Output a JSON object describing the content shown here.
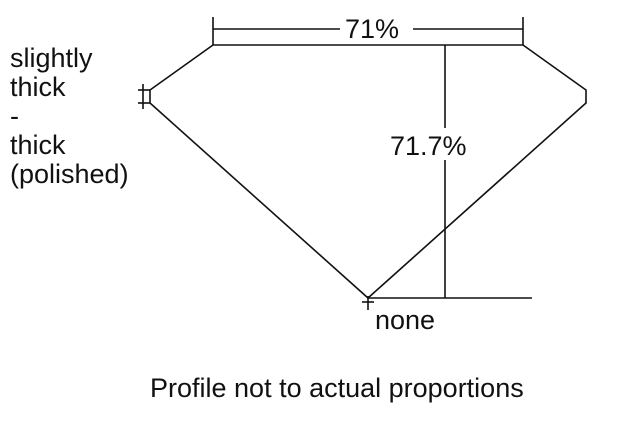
{
  "labels": {
    "table_percent": "71%",
    "depth_percent": "71.7%",
    "girdle": [
      "slightly",
      "thick",
      "-",
      "thick",
      "(polished)"
    ],
    "culet": "none",
    "caption": "Profile not to actual proportions"
  },
  "colors": {
    "line": "#111111",
    "background": "#ffffff"
  }
}
